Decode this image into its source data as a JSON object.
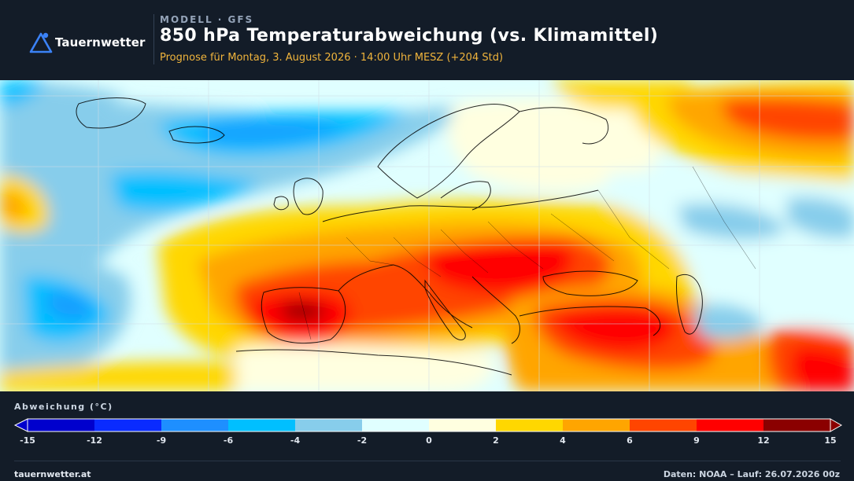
{
  "brand": {
    "name": "Tauernwetter",
    "logo_icon": "triangle-logo-icon",
    "accent": "#3b82f6"
  },
  "header": {
    "kicker": "MODELL · GFS",
    "title": "850 hPa Temperaturabweichung (vs. Klimamittel)",
    "subtitle": "Prognose für Montag, 3. August 2026 · 14:00 Uhr MESZ  (+204 Std)"
  },
  "map": {
    "variable": "850 hPa Temperaturabweichung",
    "unit": "°C",
    "region": "Europa / Nordatlantik / Mittelmeer",
    "valid_time": "Montag, 3. August 2026 · 14:00 Uhr MESZ",
    "lead_time": "+204 Std",
    "gridlines": true,
    "anomaly_fields": [
      {
        "area": "Nordatlantik",
        "level": "-6 bis -2"
      },
      {
        "area": "Atlantik südwestlich Irland",
        "level": "-6 bis -4"
      },
      {
        "area": "Iberische Halbinsel",
        "level": "12 bis 15"
      },
      {
        "area": "Italien / Balkan",
        "level": "9 bis 12"
      },
      {
        "area": "Türkei / Naher Osten",
        "level": "9 bis 12"
      },
      {
        "area": "Nordwestrussland",
        "level": "6 bis 12"
      },
      {
        "area": "Osteuropa / Russland",
        "level": "-4 bis 0"
      }
    ]
  },
  "legend": {
    "title": "Abweichung (°C)",
    "ticks": [
      "-15",
      "-12",
      "-9",
      "-6",
      "-4",
      "-2",
      "0",
      "2",
      "4",
      "6",
      "9",
      "12",
      "15"
    ],
    "colors": [
      "#0000cd",
      "#0a2bff",
      "#1e8fff",
      "#00bfff",
      "#87cdeb",
      "#e0ffff",
      "#ffffe0",
      "#ffd700",
      "#ffa500",
      "#ff4500",
      "#ff0000",
      "#8b0000"
    ],
    "extend": "both"
  },
  "footer": {
    "site": "tauernwetter.at",
    "credit": "Daten: NOAA – Lauf: 26.07.2026 00z"
  }
}
